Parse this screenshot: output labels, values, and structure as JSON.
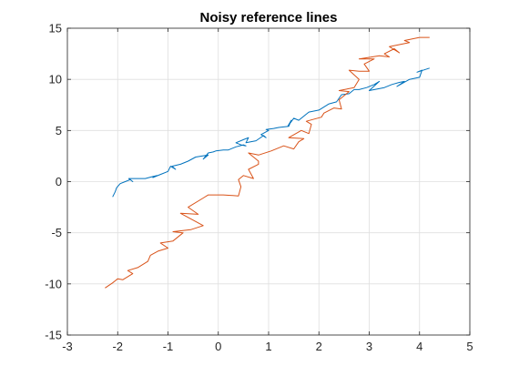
{
  "chart_data": {
    "type": "line",
    "title": "Noisy reference lines",
    "xlabel": "",
    "ylabel": "",
    "xlim": [
      -3,
      5
    ],
    "ylim": [
      -15,
      15
    ],
    "xticks": [
      -3,
      -2,
      -1,
      0,
      1,
      2,
      3,
      4,
      5
    ],
    "yticks": [
      -15,
      -10,
      -5,
      0,
      5,
      10,
      15
    ],
    "grid": true,
    "legend": "none",
    "colors": [
      "#0072BD",
      "#D95319"
    ],
    "series": [
      {
        "x": [
          -2.1,
          -2.05,
          -2.02,
          -1.95,
          -1.85,
          -1.75,
          -1.7,
          -1.78,
          -1.6,
          -1.45,
          -1.3,
          -1.22,
          -1.3,
          -1.15,
          -1.0,
          -0.95,
          -0.85,
          -0.92,
          -0.75,
          -0.6,
          -0.45,
          -0.2,
          -0.3,
          -0.2,
          -0.1,
          -0.05,
          0.1,
          0.2,
          0.35,
          0.5,
          0.55,
          0.45,
          0.35,
          0.5,
          0.6,
          0.55,
          0.75,
          0.9,
          0.95,
          0.85,
          1.0,
          0.95,
          1.1,
          1.2,
          1.4,
          1.45,
          1.38,
          1.5,
          1.6,
          1.8,
          2.0,
          2.2,
          2.35,
          2.45,
          2.6,
          2.7,
          2.8,
          2.95,
          3.1,
          3.2,
          3.0,
          3.3,
          3.45,
          3.6,
          3.7,
          3.55,
          3.8,
          4.0,
          4.05,
          3.95,
          4.2
        ],
        "y": [
          -1.5,
          -1.0,
          -0.6,
          -0.2,
          0.0,
          0.2,
          0.0,
          0.3,
          0.3,
          0.3,
          0.5,
          0.6,
          0.4,
          0.7,
          1.0,
          1.5,
          1.2,
          1.5,
          1.7,
          2.0,
          2.4,
          2.6,
          2.2,
          2.8,
          2.9,
          3.0,
          3.1,
          3.1,
          3.4,
          3.6,
          3.5,
          3.6,
          3.8,
          4.1,
          4.3,
          3.8,
          4.0,
          4.5,
          4.3,
          4.6,
          5.0,
          5.1,
          5.2,
          5.3,
          5.4,
          6.0,
          5.4,
          6.2,
          6.0,
          6.8,
          7.0,
          7.6,
          7.8,
          8.5,
          8.6,
          9.0,
          9.0,
          9.2,
          9.5,
          9.8,
          8.9,
          9.2,
          9.5,
          9.7,
          9.8,
          9.3,
          10.0,
          10.2,
          10.9,
          10.7,
          11.1
        ]
      },
      {
        "x": [
          -2.25,
          -2.1,
          -2.0,
          -1.9,
          -1.7,
          -1.8,
          -1.6,
          -1.4,
          -1.35,
          -1.2,
          -1.0,
          -1.15,
          -0.9,
          -0.7,
          -0.9,
          -0.55,
          -0.3,
          -0.75,
          -0.4,
          -0.6,
          -0.3,
          -0.2,
          -0.15,
          0.1,
          0.4,
          0.45,
          0.4,
          0.5,
          0.7,
          0.6,
          0.8,
          0.8,
          0.6,
          0.8,
          1.05,
          1.3,
          1.5,
          1.6,
          1.7,
          1.4,
          1.65,
          1.8,
          1.85,
          1.75,
          2.05,
          2.1,
          2.3,
          2.45,
          2.4,
          2.5,
          2.6,
          2.4,
          2.7,
          2.8,
          2.6,
          2.8,
          3.0,
          2.9,
          3.1,
          2.8,
          3.2,
          3.4,
          3.3,
          3.5,
          3.6,
          3.4,
          3.7,
          3.8,
          3.7,
          3.9,
          4.0,
          4.2
        ],
        "y": [
          -10.4,
          -9.9,
          -9.5,
          -9.6,
          -9.0,
          -8.7,
          -8.4,
          -7.8,
          -7.2,
          -6.8,
          -6.5,
          -6.0,
          -5.8,
          -5.0,
          -4.9,
          -4.7,
          -4.3,
          -3.1,
          -3.2,
          -2.5,
          -1.6,
          -1.3,
          -1.3,
          -1.3,
          -1.4,
          -0.5,
          0.2,
          0.6,
          0.3,
          1.2,
          1.7,
          2.0,
          2.8,
          2.6,
          3.0,
          3.5,
          3.2,
          3.9,
          4.2,
          4.3,
          5.0,
          4.7,
          5.6,
          5.9,
          6.3,
          6.7,
          7.2,
          7.1,
          8.0,
          8.4,
          8.8,
          8.9,
          9.2,
          10.0,
          10.9,
          10.8,
          10.8,
          11.5,
          12.0,
          12.0,
          12.3,
          12.2,
          12.5,
          13.0,
          12.6,
          13.2,
          13.5,
          13.6,
          13.8,
          14.0,
          14.1,
          14.1
        ]
      }
    ]
  }
}
